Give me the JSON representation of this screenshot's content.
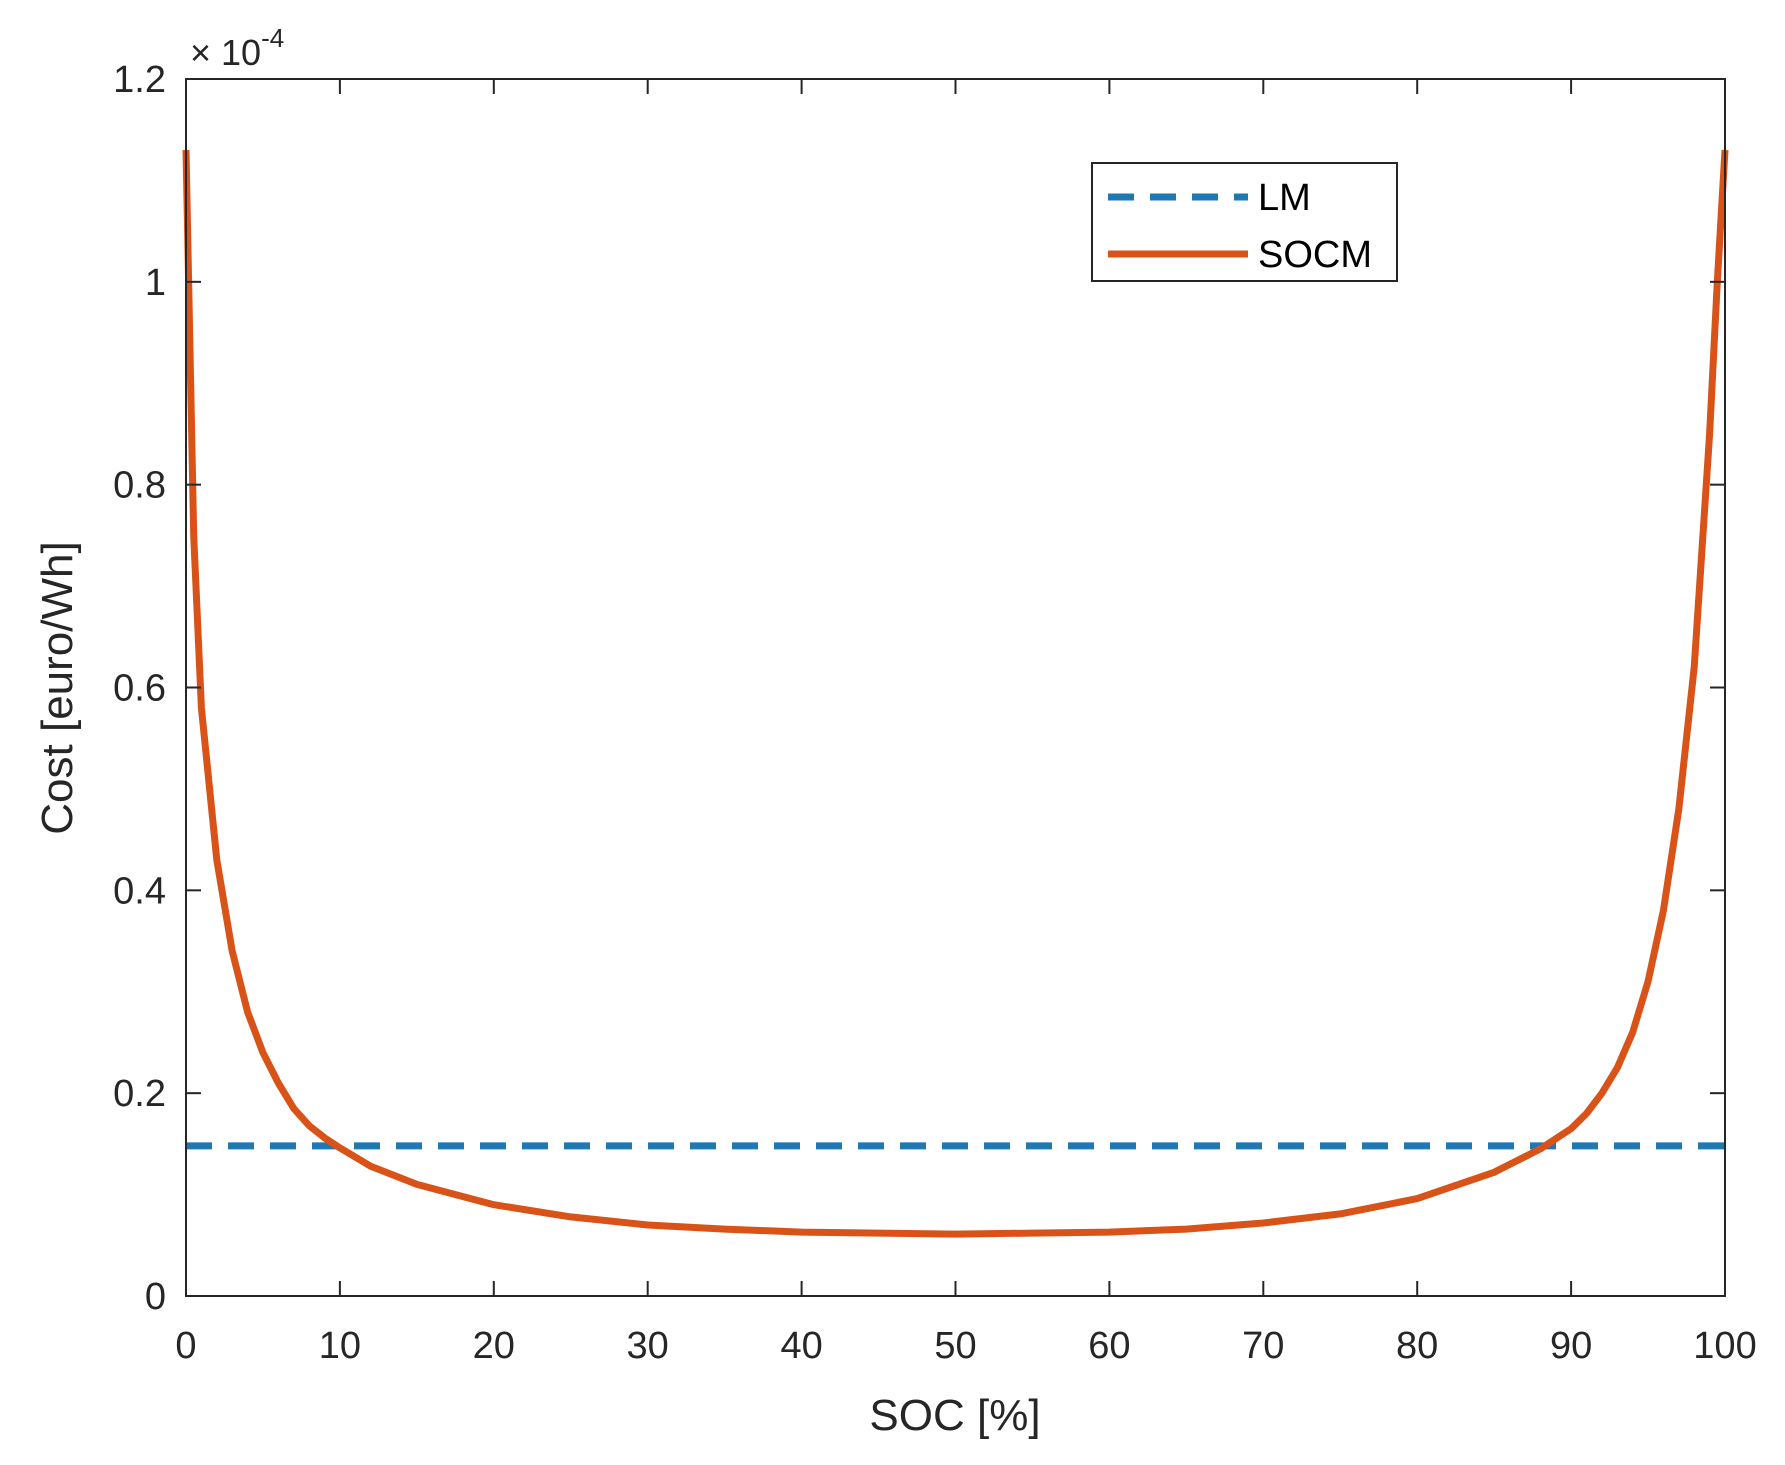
{
  "chart_data": {
    "type": "line",
    "title": "",
    "xlabel": "SOC [%]",
    "ylabel": "Cost [euro/Wh]",
    "xlim": [
      0,
      100
    ],
    "ylim": [
      0,
      1.2
    ],
    "y_multiplier": {
      "base": "× 10",
      "exponent": "-4"
    },
    "xticks": [
      "0",
      "10",
      "20",
      "30",
      "40",
      "50",
      "60",
      "70",
      "80",
      "90",
      "100"
    ],
    "yticks": [
      "0",
      "0.2",
      "0.4",
      "0.6",
      "0.8",
      "1",
      "1.2"
    ],
    "grid": false,
    "legend_position": "top-right",
    "series": [
      {
        "name": "LM",
        "style": "dashed",
        "color": "#1f77b4",
        "x": [
          0,
          100
        ],
        "y": [
          0.148,
          0.148
        ]
      },
      {
        "name": "SOCM",
        "style": "solid",
        "color": "#d95319",
        "x": [
          0,
          0.5,
          1,
          2,
          3,
          4,
          5,
          6,
          7,
          8,
          9,
          10,
          12,
          15,
          20,
          25,
          30,
          35,
          40,
          45,
          50,
          55,
          60,
          65,
          70,
          75,
          80,
          85,
          88,
          90,
          91,
          92,
          93,
          94,
          95,
          96,
          97,
          98,
          99,
          99.5,
          100
        ],
        "y": [
          1.13,
          0.75,
          0.58,
          0.43,
          0.34,
          0.28,
          0.24,
          0.21,
          0.185,
          0.168,
          0.156,
          0.146,
          0.128,
          0.11,
          0.09,
          0.078,
          0.07,
          0.066,
          0.063,
          0.062,
          0.061,
          0.062,
          0.063,
          0.066,
          0.072,
          0.081,
          0.096,
          0.122,
          0.145,
          0.165,
          0.18,
          0.2,
          0.225,
          0.26,
          0.31,
          0.38,
          0.48,
          0.62,
          0.85,
          1.0,
          1.13
        ]
      }
    ]
  }
}
